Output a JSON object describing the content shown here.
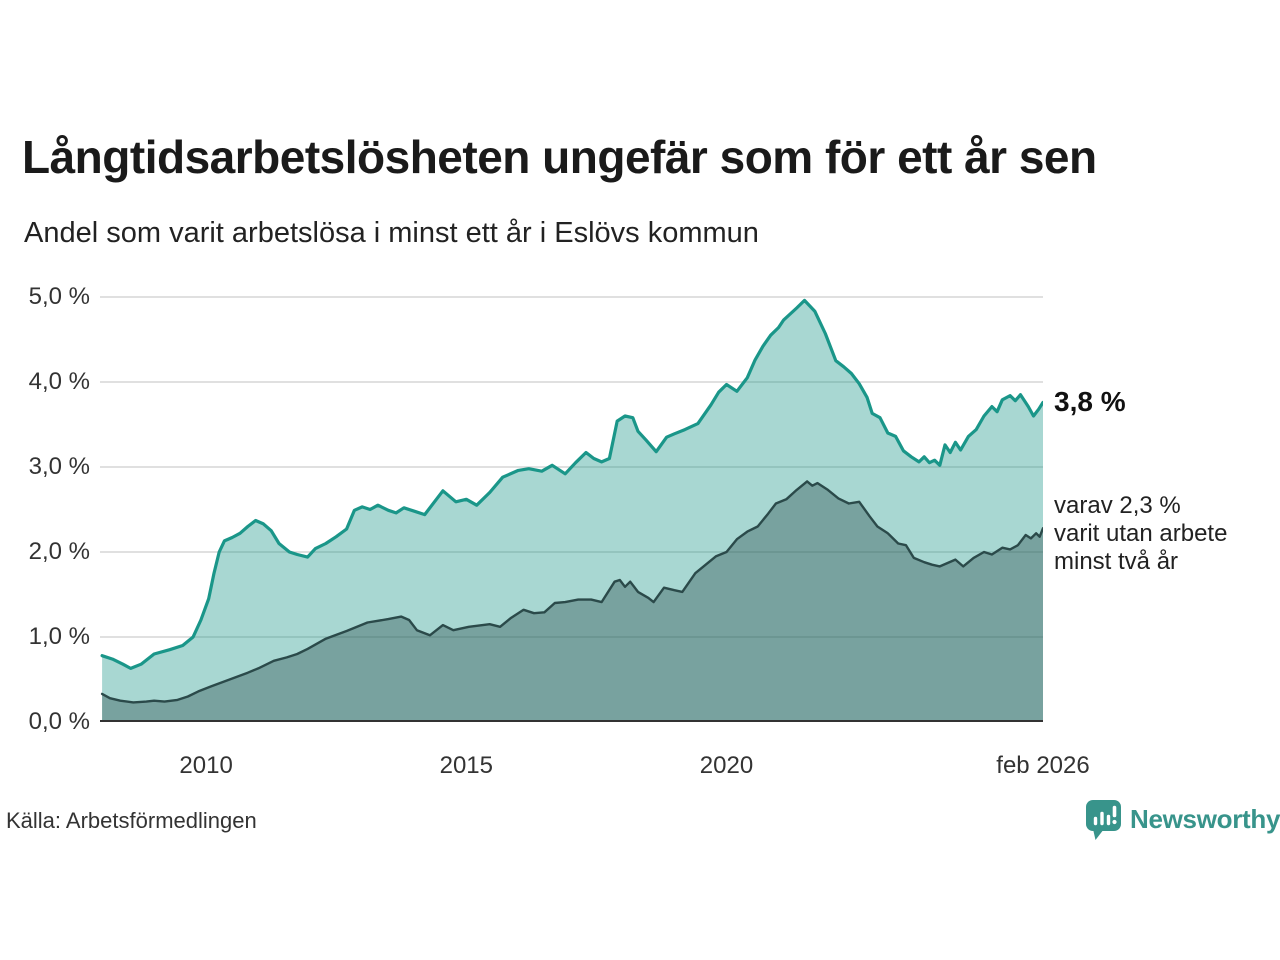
{
  "header": {
    "title": "Långtidsarbetslösheten ungefär som för ett år sen",
    "subtitle": "Andel som varit arbetslösa i minst ett år i Eslövs kommun"
  },
  "annotations": {
    "latest_value": "3,8 %",
    "secondary_note": "varav 2,3 %\nvarit utan arbete\nminst två år"
  },
  "footer": {
    "source": "Källa: Arbetsförmedlingen",
    "brand": "Newsworthy"
  },
  "colors": {
    "accent_teal": "#1a9689",
    "dark_slate": "#2b4a4a",
    "light_fill": "rgba(26,150,137,0.38)",
    "dark_fill": "rgba(35,70,70,0.36)",
    "grid": "#d5d5d5",
    "axis": "#333333",
    "brand_teal": "#38948b",
    "text_dark": "#1a1a1a"
  },
  "chart_data": {
    "type": "area",
    "title": "Långtidsarbetslösheten ungefär som för ett år sen",
    "subtitle": "Andel som varit arbetslösa i minst ett år i Eslövs kommun",
    "legend_position": "right-annotations",
    "grid": true,
    "x_axis": {
      "min": 2007.96,
      "max": 2026.083,
      "ticks": [
        {
          "value": 2010,
          "label": "2010"
        },
        {
          "value": 2015,
          "label": "2015"
        },
        {
          "value": 2020,
          "label": "2020"
        },
        {
          "value": 2026.083,
          "label": "feb 2026"
        }
      ]
    },
    "y_axis": {
      "top": 5.082,
      "min": 0,
      "max": 5,
      "unit": "%",
      "grid_values": [
        1,
        2,
        3,
        4,
        5
      ],
      "ticks": [
        {
          "value": 5,
          "label": "5,0 %"
        },
        {
          "value": 4,
          "label": "4,0 %"
        },
        {
          "value": 3,
          "label": "3,0 %"
        },
        {
          "value": 2,
          "label": "2,0 %"
        },
        {
          "value": 1,
          "label": "1,0 %"
        },
        {
          "value": 0,
          "label": "0,0 %"
        }
      ]
    },
    "series": [
      {
        "id": "arbetslosa-minst-ett-ar",
        "end_label": "3,8 %",
        "end_value": 3.8,
        "stroke": "#1a9689",
        "fill": "rgba(26,150,137,0.38)",
        "stroke_width": 3.2,
        "points": [
          [
            2008.0,
            0.78
          ],
          [
            2008.2,
            0.74
          ],
          [
            2008.4,
            0.68
          ],
          [
            2008.55,
            0.63
          ],
          [
            2008.75,
            0.68
          ],
          [
            2009.0,
            0.8
          ],
          [
            2009.3,
            0.85
          ],
          [
            2009.55,
            0.9
          ],
          [
            2009.75,
            1.0
          ],
          [
            2009.9,
            1.2
          ],
          [
            2010.05,
            1.45
          ],
          [
            2010.15,
            1.75
          ],
          [
            2010.25,
            2.0
          ],
          [
            2010.35,
            2.13
          ],
          [
            2010.5,
            2.17
          ],
          [
            2010.65,
            2.22
          ],
          [
            2010.8,
            2.3
          ],
          [
            2010.95,
            2.37
          ],
          [
            2011.1,
            2.33
          ],
          [
            2011.25,
            2.25
          ],
          [
            2011.4,
            2.1
          ],
          [
            2011.6,
            2.0
          ],
          [
            2011.75,
            1.97
          ],
          [
            2011.95,
            1.94
          ],
          [
            2012.1,
            2.04
          ],
          [
            2012.3,
            2.1
          ],
          [
            2012.5,
            2.18
          ],
          [
            2012.7,
            2.27
          ],
          [
            2012.85,
            2.49
          ],
          [
            2013.0,
            2.53
          ],
          [
            2013.15,
            2.5
          ],
          [
            2013.3,
            2.55
          ],
          [
            2013.5,
            2.49
          ],
          [
            2013.65,
            2.46
          ],
          [
            2013.8,
            2.52
          ],
          [
            2014.0,
            2.48
          ],
          [
            2014.2,
            2.44
          ],
          [
            2014.55,
            2.72
          ],
          [
            2014.8,
            2.59
          ],
          [
            2015.0,
            2.62
          ],
          [
            2015.2,
            2.55
          ],
          [
            2015.45,
            2.7
          ],
          [
            2015.7,
            2.88
          ],
          [
            2016.0,
            2.96
          ],
          [
            2016.2,
            2.98
          ],
          [
            2016.45,
            2.95
          ],
          [
            2016.65,
            3.02
          ],
          [
            2016.9,
            2.92
          ],
          [
            2017.1,
            3.05
          ],
          [
            2017.3,
            3.17
          ],
          [
            2017.45,
            3.1
          ],
          [
            2017.6,
            3.06
          ],
          [
            2017.75,
            3.1
          ],
          [
            2017.9,
            3.54
          ],
          [
            2018.05,
            3.6
          ],
          [
            2018.2,
            3.58
          ],
          [
            2018.3,
            3.42
          ],
          [
            2018.45,
            3.32
          ],
          [
            2018.65,
            3.18
          ],
          [
            2018.85,
            3.35
          ],
          [
            2019.0,
            3.39
          ],
          [
            2019.2,
            3.44
          ],
          [
            2019.45,
            3.51
          ],
          [
            2019.7,
            3.73
          ],
          [
            2019.85,
            3.88
          ],
          [
            2020.0,
            3.97
          ],
          [
            2020.2,
            3.89
          ],
          [
            2020.4,
            4.05
          ],
          [
            2020.55,
            4.26
          ],
          [
            2020.7,
            4.42
          ],
          [
            2020.85,
            4.55
          ],
          [
            2021.0,
            4.64
          ],
          [
            2021.1,
            4.73
          ],
          [
            2021.35,
            4.87
          ],
          [
            2021.5,
            4.96
          ],
          [
            2021.7,
            4.83
          ],
          [
            2021.9,
            4.57
          ],
          [
            2022.1,
            4.25
          ],
          [
            2022.25,
            4.18
          ],
          [
            2022.4,
            4.1
          ],
          [
            2022.55,
            3.98
          ],
          [
            2022.7,
            3.82
          ],
          [
            2022.8,
            3.63
          ],
          [
            2022.95,
            3.58
          ],
          [
            2023.1,
            3.4
          ],
          [
            2023.25,
            3.36
          ],
          [
            2023.4,
            3.19
          ],
          [
            2023.55,
            3.12
          ],
          [
            2023.7,
            3.06
          ],
          [
            2023.8,
            3.12
          ],
          [
            2023.9,
            3.05
          ],
          [
            2024.0,
            3.08
          ],
          [
            2024.1,
            3.02
          ],
          [
            2024.2,
            3.26
          ],
          [
            2024.3,
            3.17
          ],
          [
            2024.4,
            3.29
          ],
          [
            2024.5,
            3.2
          ],
          [
            2024.65,
            3.36
          ],
          [
            2024.8,
            3.44
          ],
          [
            2024.95,
            3.6
          ],
          [
            2025.1,
            3.71
          ],
          [
            2025.2,
            3.65
          ],
          [
            2025.3,
            3.79
          ],
          [
            2025.45,
            3.84
          ],
          [
            2025.55,
            3.78
          ],
          [
            2025.65,
            3.85
          ],
          [
            2025.8,
            3.71
          ],
          [
            2025.9,
            3.6
          ],
          [
            2026.0,
            3.68
          ],
          [
            2026.083,
            3.76
          ]
        ]
      },
      {
        "id": "utan-arbete-minst-tva-ar",
        "end_label": "2,3 %",
        "end_value": 2.3,
        "stroke": "#2b4a4a",
        "fill": "rgba(35,70,70,0.36)",
        "stroke_width": 2.4,
        "points": [
          [
            2008.0,
            0.33
          ],
          [
            2008.15,
            0.28
          ],
          [
            2008.35,
            0.25
          ],
          [
            2008.6,
            0.23
          ],
          [
            2008.85,
            0.24
          ],
          [
            2009.0,
            0.25
          ],
          [
            2009.2,
            0.24
          ],
          [
            2009.45,
            0.26
          ],
          [
            2009.65,
            0.3
          ],
          [
            2009.85,
            0.36
          ],
          [
            2010.1,
            0.42
          ],
          [
            2010.45,
            0.5
          ],
          [
            2010.8,
            0.58
          ],
          [
            2011.0,
            0.63
          ],
          [
            2011.3,
            0.72
          ],
          [
            2011.55,
            0.76
          ],
          [
            2011.75,
            0.8
          ],
          [
            2011.95,
            0.86
          ],
          [
            2012.3,
            0.98
          ],
          [
            2012.7,
            1.07
          ],
          [
            2013.1,
            1.17
          ],
          [
            2013.5,
            1.21
          ],
          [
            2013.75,
            1.24
          ],
          [
            2013.9,
            1.2
          ],
          [
            2014.05,
            1.08
          ],
          [
            2014.3,
            1.02
          ],
          [
            2014.55,
            1.14
          ],
          [
            2014.75,
            1.08
          ],
          [
            2015.05,
            1.12
          ],
          [
            2015.45,
            1.15
          ],
          [
            2015.65,
            1.12
          ],
          [
            2015.85,
            1.22
          ],
          [
            2016.1,
            1.32
          ],
          [
            2016.3,
            1.28
          ],
          [
            2016.5,
            1.29
          ],
          [
            2016.7,
            1.4
          ],
          [
            2016.9,
            1.41
          ],
          [
            2017.15,
            1.44
          ],
          [
            2017.4,
            1.44
          ],
          [
            2017.6,
            1.41
          ],
          [
            2017.85,
            1.65
          ],
          [
            2017.95,
            1.67
          ],
          [
            2018.05,
            1.59
          ],
          [
            2018.15,
            1.65
          ],
          [
            2018.3,
            1.53
          ],
          [
            2018.5,
            1.46
          ],
          [
            2018.6,
            1.41
          ],
          [
            2018.8,
            1.58
          ],
          [
            2019.0,
            1.55
          ],
          [
            2019.15,
            1.53
          ],
          [
            2019.4,
            1.75
          ],
          [
            2019.6,
            1.85
          ],
          [
            2019.8,
            1.95
          ],
          [
            2020.0,
            2.0
          ],
          [
            2020.2,
            2.15
          ],
          [
            2020.4,
            2.24
          ],
          [
            2020.6,
            2.3
          ],
          [
            2020.8,
            2.45
          ],
          [
            2020.95,
            2.57
          ],
          [
            2021.15,
            2.62
          ],
          [
            2021.35,
            2.73
          ],
          [
            2021.55,
            2.83
          ],
          [
            2021.65,
            2.78
          ],
          [
            2021.75,
            2.81
          ],
          [
            2021.95,
            2.73
          ],
          [
            2022.15,
            2.63
          ],
          [
            2022.35,
            2.57
          ],
          [
            2022.55,
            2.59
          ],
          [
            2022.75,
            2.42
          ],
          [
            2022.9,
            2.3
          ],
          [
            2023.1,
            2.22
          ],
          [
            2023.3,
            2.1
          ],
          [
            2023.45,
            2.08
          ],
          [
            2023.6,
            1.93
          ],
          [
            2023.8,
            1.88
          ],
          [
            2023.95,
            1.85
          ],
          [
            2024.1,
            1.83
          ],
          [
            2024.25,
            1.87
          ],
          [
            2024.4,
            1.91
          ],
          [
            2024.55,
            1.83
          ],
          [
            2024.75,
            1.93
          ],
          [
            2024.95,
            2.0
          ],
          [
            2025.1,
            1.97
          ],
          [
            2025.3,
            2.05
          ],
          [
            2025.45,
            2.03
          ],
          [
            2025.6,
            2.08
          ],
          [
            2025.75,
            2.2
          ],
          [
            2025.85,
            2.16
          ],
          [
            2025.95,
            2.22
          ],
          [
            2026.02,
            2.18
          ],
          [
            2026.083,
            2.28
          ]
        ]
      }
    ]
  }
}
